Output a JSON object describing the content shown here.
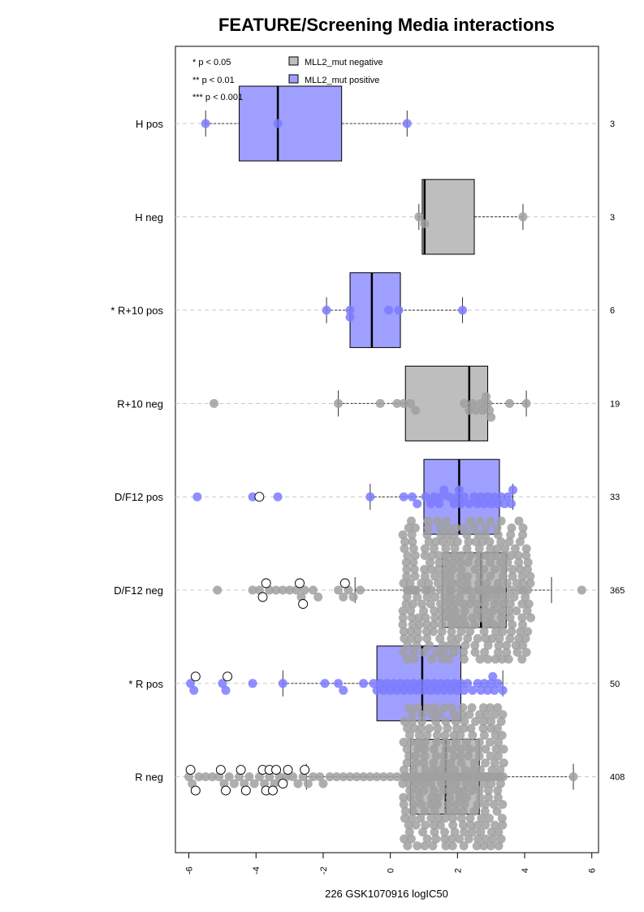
{
  "chart_data": {
    "type": "boxplot",
    "title": "FEATURE/Screening Media interactions",
    "xlabel": "226 GSK1070916 logIC50",
    "xlim": [
      -6.4,
      6.2
    ],
    "x_ticks": [
      -6,
      -4,
      -2,
      0,
      2,
      4,
      6
    ],
    "x_tick_labels": [
      "-6",
      "-4",
      "-2",
      "0",
      "2",
      "4",
      "6"
    ],
    "grid": "horizontal dashed",
    "legend": {
      "placement": "top-left",
      "significance": [
        "* p < 0.05",
        "** p < 0.01",
        "*** p < 0.001"
      ],
      "entries": [
        {
          "label": "MLL2_mut negative",
          "color": "#bebebe"
        },
        {
          "label": "MLL2_mut positive",
          "color": "#9f9fff"
        }
      ]
    },
    "colors": {
      "negative_box": "#bebebe",
      "positive_box": "#9f9fff",
      "negative_point": "#a0a0a0",
      "positive_point": "#7b7bff"
    },
    "groups": [
      {
        "label": "H pos",
        "count": "3",
        "mutation": "positive",
        "whisker": [
          -5.5,
          0.5
        ],
        "q1": -4.5,
        "median": -3.35,
        "q3": -1.45,
        "points": [
          -5.5,
          -3.35,
          0.5
        ],
        "hollow": []
      },
      {
        "label": "H neg",
        "count": "3",
        "mutation": "negative",
        "whisker": [
          0.85,
          3.95
        ],
        "q1": 0.95,
        "median": 1.02,
        "q3": 2.5,
        "points": [
          0.85,
          1.02,
          3.95
        ],
        "hollow": []
      },
      {
        "label": "* R+10 pos",
        "count": "6",
        "mutation": "positive",
        "whisker": [
          -1.9,
          2.15
        ],
        "q1": -1.2,
        "median": -0.55,
        "q3": 0.3,
        "points": [
          -1.9,
          -1.2,
          -1.2,
          -0.05,
          0.25,
          2.15
        ],
        "hollow": []
      },
      {
        "label": "R+10 neg",
        "count": "19",
        "mutation": "negative",
        "whisker": [
          -1.55,
          4.05
        ],
        "q1": 0.45,
        "median": 2.35,
        "q3": 2.9,
        "points": [
          -5.25,
          -1.55,
          -0.3,
          0.2,
          0.4,
          0.6,
          0.75,
          2.2,
          2.35,
          2.45,
          2.55,
          2.7,
          2.75,
          2.85,
          2.9,
          2.95,
          3.0,
          3.55,
          4.05
        ],
        "hollow": []
      },
      {
        "label": "D/F12 pos",
        "count": "33",
        "mutation": "positive",
        "whisker": [
          -0.6,
          3.65
        ],
        "q1": 1.0,
        "median": 2.05,
        "q3": 3.25,
        "points": [
          -5.75,
          -4.1,
          -3.35,
          -0.6,
          0.4,
          0.65,
          0.8,
          1.05,
          1.2,
          1.3,
          1.45,
          1.5,
          1.6,
          1.75,
          1.9,
          2.0,
          2.05,
          2.1,
          2.2,
          2.35,
          2.5,
          2.6,
          2.7,
          2.8,
          2.9,
          3.0,
          3.1,
          3.2,
          3.3,
          3.4,
          3.5,
          3.6,
          3.65
        ],
        "hollow": [
          -3.9
        ]
      },
      {
        "label": "D/F12 neg",
        "count": "365",
        "mutation": "negative",
        "whisker": [
          -1.05,
          4.8
        ],
        "q1": 1.55,
        "median": 2.7,
        "q3": 3.45,
        "n_body": 320,
        "points": [
          5.7,
          -5.15,
          -4.1,
          -3.9,
          -3.6,
          -3.4,
          -3.2,
          -3.0,
          -2.8,
          -2.65,
          -2.55,
          -2.3,
          -2.15,
          -1.55,
          -1.4,
          -1.25,
          -1.1,
          -0.9
        ],
        "hollow": [
          -3.8,
          -3.7,
          -2.7,
          -2.6,
          -1.35
        ]
      },
      {
        "label": "* R pos",
        "count": "50",
        "mutation": "positive",
        "whisker": [
          -3.2,
          3.35
        ],
        "q1": -0.4,
        "median": 0.95,
        "q3": 2.1,
        "points": [
          -5.95,
          -5.85,
          -5.0,
          -4.9,
          -4.1,
          -3.2,
          -1.95,
          -1.55,
          -1.4,
          -0.8,
          -0.5,
          -0.4,
          -0.3,
          -0.2,
          -0.1,
          0.0,
          0.1,
          0.2,
          0.3,
          0.4,
          0.5,
          0.6,
          0.7,
          0.8,
          0.9,
          1.0,
          1.1,
          1.2,
          1.3,
          1.4,
          1.5,
          1.6,
          1.7,
          1.8,
          1.9,
          2.0,
          2.1,
          2.2,
          2.3,
          2.45,
          2.6,
          2.7,
          2.8,
          2.9,
          3.0,
          3.05,
          3.1,
          3.2,
          3.35
        ],
        "hollow": [
          -5.8,
          -4.85
        ]
      },
      {
        "label": "R neg",
        "count": "408",
        "mutation": "negative",
        "whisker": [
          -2.5,
          5.45
        ],
        "q1": 0.6,
        "median": 1.65,
        "q3": 2.65,
        "n_body": 320,
        "points": [
          5.45,
          -6.0,
          -5.9,
          -5.7,
          -5.5,
          -5.3,
          -5.1,
          -4.95,
          -4.8,
          -4.65,
          -4.5,
          -4.35,
          -4.2,
          -4.05,
          -3.9,
          -3.75,
          -3.6,
          -3.45,
          -3.3,
          -3.1,
          -2.9,
          -2.75,
          -2.6,
          -2.45,
          -2.3,
          -2.1,
          -2.0,
          -1.8,
          -1.6,
          -1.4,
          -1.2,
          -1.0,
          -0.8,
          -0.6,
          -0.4,
          -0.2,
          0.0,
          0.2,
          0.4
        ],
        "hollow": [
          -5.95,
          -5.8,
          -5.05,
          -4.9,
          -4.45,
          -4.3,
          -3.8,
          -3.7,
          -3.6,
          -3.5,
          -3.4,
          -3.2,
          -3.05,
          -2.55
        ]
      }
    ]
  }
}
